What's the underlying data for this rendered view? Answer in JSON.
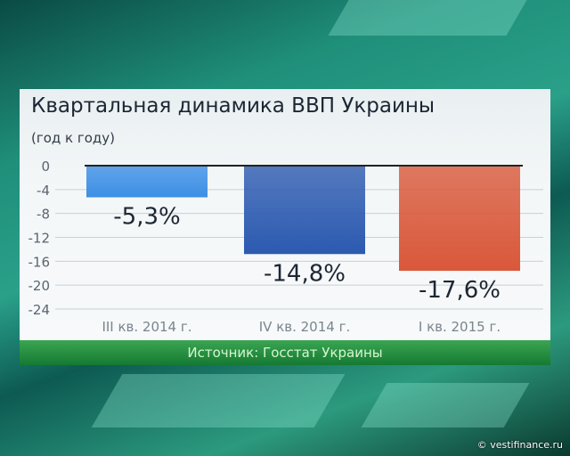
{
  "chart_data": {
    "type": "bar",
    "title": "Квартальная динамика ВВП Украины",
    "subtitle": "(год к году)",
    "categories": [
      "III кв. 2014 г.",
      "IV кв. 2014 г.",
      "I кв. 2015 г."
    ],
    "values": [
      -5.3,
      -14.8,
      -17.6
    ],
    "data_labels": [
      "-5,3%",
      "-14,8%",
      "-17,6%"
    ],
    "colors": [
      "#3d8fe6",
      "#2c5ab0",
      "#d9583a"
    ],
    "yticks": [
      0,
      -4,
      -8,
      -12,
      -16,
      -20,
      -24
    ],
    "ylim": [
      -24,
      0
    ],
    "grid": true
  },
  "source": "Источник: Госстат Украины",
  "watermark": "© vestifinance.ru"
}
